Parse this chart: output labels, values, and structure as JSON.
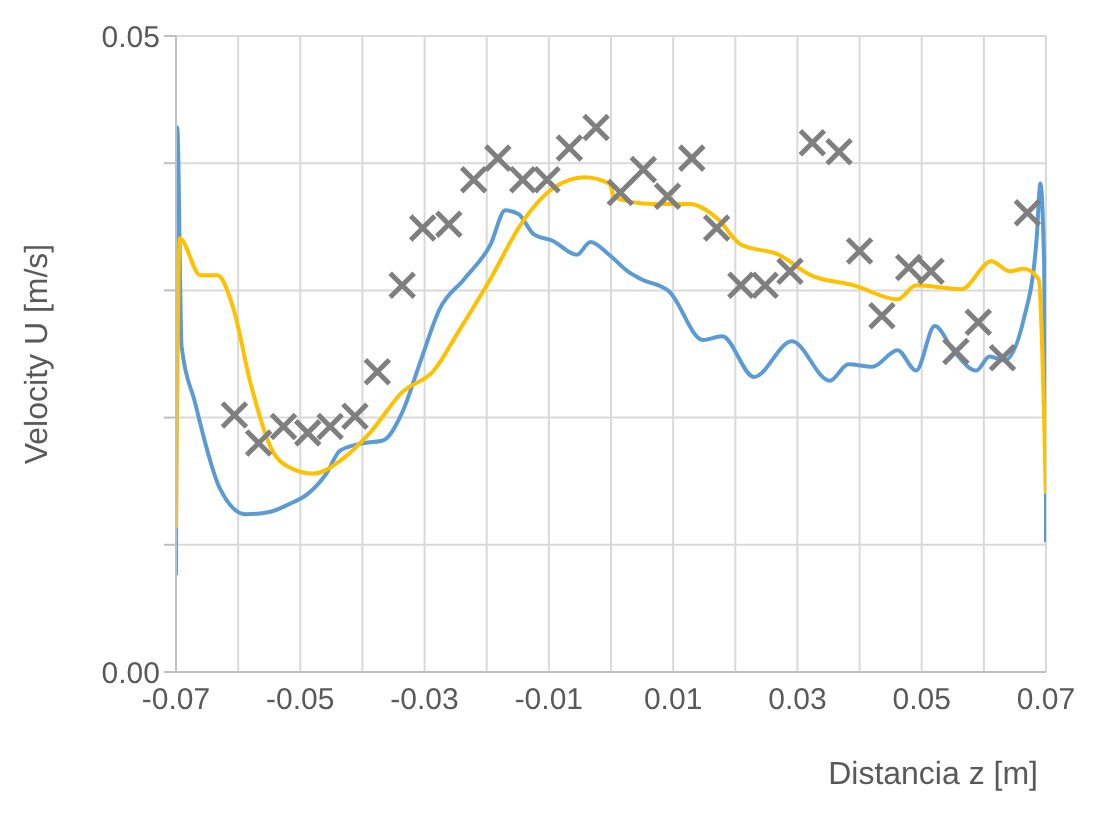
{
  "chart_data": {
    "type": "line",
    "xlabel": "Distancia z [m]",
    "ylabel": "Velocity U [m/s]",
    "xlim": [
      -0.07,
      0.07
    ],
    "xticks": [
      -0.07,
      {
        "value": -0.06,
        "label": null
      },
      -0.05,
      {
        "value": -0.04,
        "label": null
      },
      -0.03,
      {
        "value": -0.02,
        "label": null
      },
      -0.01,
      {
        "value": 0,
        "label": null
      },
      0.01,
      {
        "value": 0.02,
        "label": null
      },
      0.03,
      {
        "value": 0.04,
        "label": null
      },
      0.05,
      {
        "value": 0.06,
        "label": null
      },
      0.07
    ],
    "ylim": [
      0,
      0.05
    ],
    "yticks": [
      {
        "value": 0,
        "label": "0.00"
      },
      {
        "value": 0.01,
        "label": null
      },
      {
        "value": 0.02,
        "label": null
      },
      {
        "value": 0.03,
        "label": null
      },
      {
        "value": 0.04,
        "label": null
      },
      {
        "value": 0.05,
        "label": "0.05"
      }
    ],
    "grid": true,
    "legend": false,
    "line_style": "solid",
    "series": [
      {
        "color": "#5b9bd5",
        "marker": "none",
        "x": [
          -0.07,
          -0.0698,
          -0.0691,
          -0.067,
          -0.063,
          -0.0588,
          -0.0548,
          -0.0518,
          -0.0488,
          -0.0458,
          -0.0436,
          -0.0397,
          -0.0367,
          -0.0336,
          -0.0306,
          -0.0276,
          -0.0236,
          -0.0194,
          -0.017,
          -0.0149,
          -0.0124,
          -0.0094,
          -0.0055,
          -0.0033,
          -0.0003,
          0.0027,
          0.0048,
          0.0094,
          0.0148,
          0.0179,
          0.023,
          0.0291,
          0.0352,
          0.0382,
          0.0421,
          0.0461,
          0.0491,
          0.0521,
          0.0552,
          0.0588,
          0.0609,
          0.0633,
          0.0664,
          0.0685,
          0.0691,
          0.0697,
          0.07,
          0.07
        ],
        "values": [
          0.0076,
          0.0428,
          0.0256,
          0.0213,
          0.0145,
          0.0124,
          0.0126,
          0.0132,
          0.014,
          0.0156,
          0.0174,
          0.018,
          0.0182,
          0.0204,
          0.0245,
          0.0285,
          0.0309,
          0.0336,
          0.0363,
          0.036,
          0.0344,
          0.0339,
          0.0328,
          0.0338,
          0.0328,
          0.0315,
          0.0309,
          0.0299,
          0.0261,
          0.0264,
          0.0232,
          0.026,
          0.0229,
          0.0242,
          0.024,
          0.0253,
          0.0237,
          0.0272,
          0.0252,
          0.0237,
          0.0248,
          0.0245,
          0.0277,
          0.0341,
          0.0384,
          0.032,
          0.0134,
          0.0102
        ]
      },
      {
        "color": "#ffc000",
        "marker": "none",
        "x": [
          -0.07,
          -0.0694,
          -0.0661,
          -0.0633,
          -0.0609,
          -0.0579,
          -0.0548,
          -0.0518,
          -0.0479,
          -0.0436,
          -0.0388,
          -0.0336,
          -0.0285,
          -0.0245,
          -0.0194,
          -0.0145,
          -0.0094,
          -0.0042,
          -0.0003,
          0.0006,
          0.0067,
          0.0127,
          0.017,
          0.0209,
          0.027,
          0.0321,
          0.0391,
          0.0461,
          0.0491,
          0.0564,
          0.0612,
          0.0642,
          0.0664,
          0.0688,
          0.07
        ],
        "values": [
          0.0113,
          0.0341,
          0.0312,
          0.0312,
          0.0288,
          0.0225,
          0.0177,
          0.0161,
          0.0156,
          0.0166,
          0.0188,
          0.022,
          0.0237,
          0.0268,
          0.0309,
          0.0352,
          0.038,
          0.0389,
          0.0384,
          0.0373,
          0.0368,
          0.0368,
          0.0357,
          0.0336,
          0.0328,
          0.0312,
          0.0304,
          0.0293,
          0.0304,
          0.0301,
          0.0323,
          0.0315,
          0.0317,
          0.0309,
          0.014
        ]
      },
      {
        "type": "scatter",
        "color": "#7f7f7f",
        "marker": "cross",
        "x": [
          -0.0606,
          -0.0567,
          -0.0527,
          -0.0488,
          -0.0452,
          -0.0412,
          -0.0376,
          -0.0336,
          -0.0303,
          -0.0261,
          -0.0221,
          -0.0182,
          -0.0142,
          -0.0103,
          -0.0067,
          -0.0024,
          0.0015,
          0.0052,
          0.0091,
          0.013,
          0.017,
          0.0209,
          0.0248,
          0.0288,
          0.0324,
          0.0367,
          0.04,
          0.0436,
          0.0479,
          0.0515,
          0.0555,
          0.0591,
          0.063,
          0.067
        ],
        "values": [
          0.0202,
          0.018,
          0.0193,
          0.0188,
          0.0193,
          0.0201,
          0.0236,
          0.0304,
          0.0349,
          0.0352,
          0.0387,
          0.0404,
          0.0387,
          0.0387,
          0.0412,
          0.0428,
          0.0377,
          0.0395,
          0.0374,
          0.0404,
          0.0349,
          0.0304,
          0.0304,
          0.0315,
          0.0416,
          0.0409,
          0.0331,
          0.028,
          0.0318,
          0.0315,
          0.0252,
          0.0275,
          0.0247,
          0.0361
        ]
      }
    ]
  }
}
